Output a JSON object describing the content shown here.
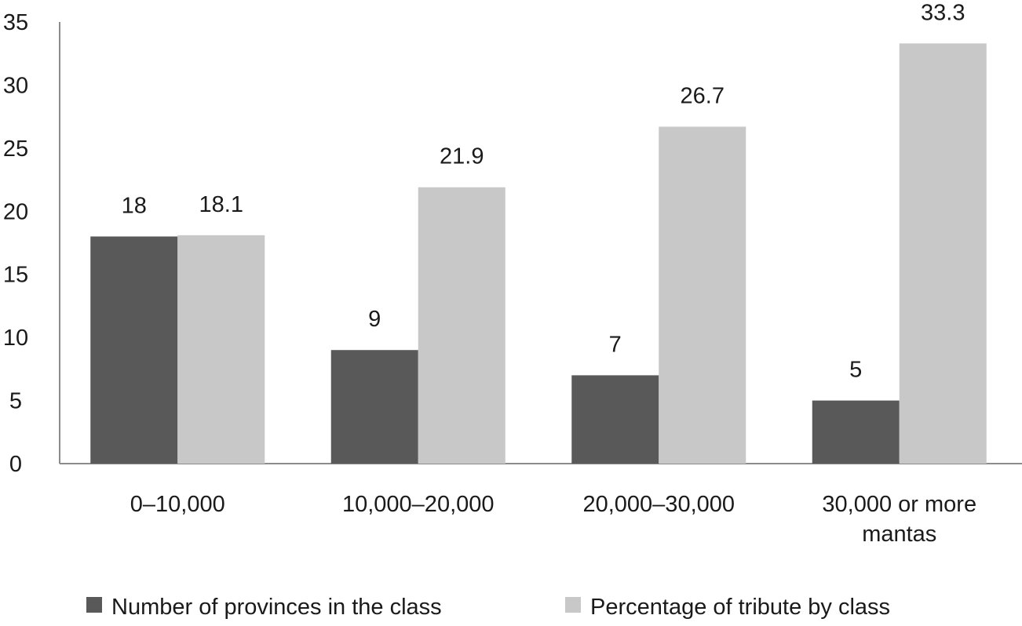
{
  "chart_data": {
    "type": "bar",
    "title": "",
    "xlabel": "",
    "ylabel": "",
    "ylim": [
      0,
      35
    ],
    "yticks": [
      0,
      5,
      10,
      15,
      20,
      25,
      30,
      35
    ],
    "grid": false,
    "legend_position": "bottom",
    "categories": [
      [
        "0–10,000"
      ],
      [
        "10,000–20,000"
      ],
      [
        "20,000–30,000"
      ],
      [
        "30,000 or more",
        "mantas"
      ]
    ],
    "series": [
      {
        "name": "Number of provinces in the class",
        "values": [
          18,
          9,
          7,
          5
        ],
        "labels": [
          "18",
          "9",
          "7",
          "5"
        ],
        "color": "#595959"
      },
      {
        "name": "Percentage of tribute by class",
        "values": [
          18.1,
          21.9,
          26.7,
          33.3
        ],
        "labels": [
          "18.1",
          "21.9",
          "26.7",
          "33.3"
        ],
        "color": "#c8c8c8"
      }
    ],
    "axis_color": "#8c8c8c"
  }
}
